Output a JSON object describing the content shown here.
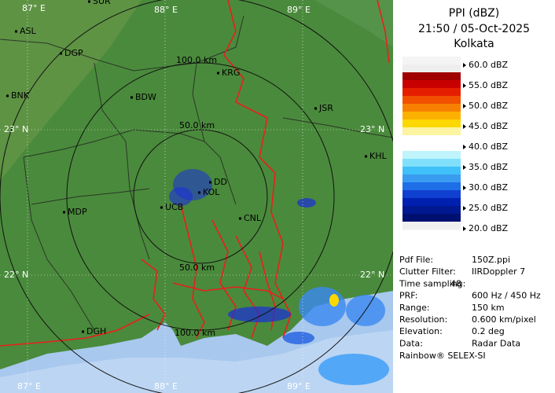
{
  "header": {
    "title": "PPI (dBZ)",
    "time": "21:50 / 05-Oct-2025",
    "site": "Kolkata"
  },
  "legend": {
    "labels": [
      "60.0 dBZ",
      "55.0 dBZ",
      "50.0 dBZ",
      "45.0 dBZ",
      "40.0 dBZ",
      "35.0 dBZ",
      "30.0 dBZ",
      "25.0 dBZ",
      "20.0 dBZ"
    ],
    "colors": [
      "#f4f4f4",
      "#eeeeee",
      "#a00000",
      "#c80000",
      "#e61e00",
      "#f05000",
      "#f88000",
      "#fcb000",
      "#fcd800",
      "#fcf4a0",
      "#ffffff",
      "#ffffff",
      "#c0f4fc",
      "#80e0fc",
      "#40c0f8",
      "#3a9cf0",
      "#1e6ee8",
      "#1040d0",
      "#0020b0",
      "#001890",
      "#001070",
      "#f0f0f0"
    ]
  },
  "info": {
    "rows": [
      [
        "Pdf File:",
        "150Z.ppi"
      ],
      [
        "Clutter Filter:",
        "IIRDoppler 7"
      ],
      [
        "Time sampling:",
        "48"
      ],
      [
        "PRF:",
        "600 Hz / 450 Hz"
      ],
      [
        "Range:",
        "150 km"
      ],
      [
        "Resolution:",
        "0.600 km/pixel"
      ],
      [
        "Elevation:",
        "0.2 deg"
      ],
      [
        "Data:",
        "Radar Data"
      ]
    ],
    "footer": "Rainbow® SELEX-SI"
  },
  "map": {
    "grid_labels": [
      "87° E",
      "88° E",
      "89° E",
      "23° N",
      "23° N",
      "22° N",
      "22° N",
      "87° E",
      "88° E",
      "89° E"
    ],
    "cities": [
      "SUR",
      "ASL",
      "DGP",
      "BNK",
      "BDW",
      "KRG",
      "JSR",
      "KHL",
      "DD",
      "KOL",
      "UCB",
      "MDP",
      "CNL",
      "DGH"
    ],
    "ranges": [
      "100.0 km",
      "50.0 km",
      "50.0 km",
      "100.0 km"
    ]
  }
}
